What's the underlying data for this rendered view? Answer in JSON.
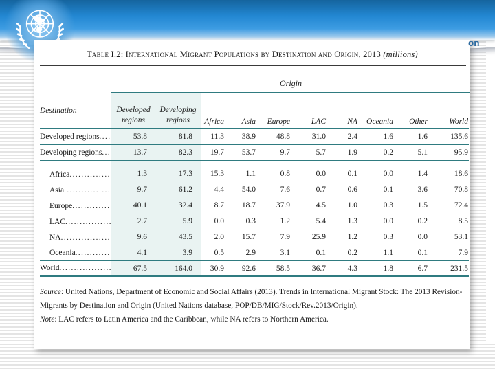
{
  "header": {
    "fragment": "on",
    "logo": "united-nations-emblem",
    "colors": {
      "band_top": "#15649e",
      "band_mid": "#2e94de",
      "fragment_blue": "#2c6aa0"
    }
  },
  "panel": {
    "title": "Table I.2: International Migrant Populations by Destination and Origin, 2013",
    "title_unit": "(millions)",
    "origin_label": "Origin",
    "columns": [
      "Destination",
      "Developed regions",
      "Developing regions",
      "Africa",
      "Asia",
      "Europe",
      "LAC",
      "NA",
      "Oceania",
      "Other",
      "World"
    ],
    "rows": [
      {
        "label": "Developed regions",
        "indent": false,
        "sep": "thin",
        "values": [
          "53.8",
          "81.8",
          "11.3",
          "38.9",
          "48.8",
          "31.0",
          "2.4",
          "1.6",
          "1.6",
          "135.6"
        ]
      },
      {
        "label": "Developing regions",
        "indent": false,
        "sep": "thin",
        "gap_after": true,
        "values": [
          "13.7",
          "82.3",
          "19.7",
          "53.7",
          "9.7",
          "5.7",
          "1.9",
          "0.2",
          "5.1",
          "95.9"
        ]
      },
      {
        "label": "Africa",
        "indent": true,
        "values": [
          "1.3",
          "17.3",
          "15.3",
          "1.1",
          "0.8",
          "0.0",
          "0.1",
          "0.0",
          "1.4",
          "18.6"
        ]
      },
      {
        "label": "Asia",
        "indent": true,
        "values": [
          "9.7",
          "61.2",
          "4.4",
          "54.0",
          "7.6",
          "0.7",
          "0.6",
          "0.1",
          "3.6",
          "70.8"
        ]
      },
      {
        "label": "Europe",
        "indent": true,
        "values": [
          "40.1",
          "32.4",
          "8.7",
          "18.7",
          "37.9",
          "4.5",
          "1.0",
          "0.3",
          "1.5",
          "72.4"
        ]
      },
      {
        "label": "LAC",
        "indent": true,
        "values": [
          "2.7",
          "5.9",
          "0.0",
          "0.3",
          "1.2",
          "5.4",
          "1.3",
          "0.0",
          "0.2",
          "8.5"
        ]
      },
      {
        "label": "NA",
        "indent": true,
        "values": [
          "9.6",
          "43.5",
          "2.0",
          "15.7",
          "7.9",
          "25.9",
          "1.2",
          "0.3",
          "0.0",
          "53.1"
        ]
      },
      {
        "label": "Oceania",
        "indent": true,
        "sep": "hair",
        "values": [
          "4.1",
          "3.9",
          "0.5",
          "2.9",
          "3.1",
          "0.1",
          "0.2",
          "1.1",
          "0.1",
          "7.9"
        ]
      },
      {
        "label": "World",
        "indent": false,
        "sep": "thick",
        "values": [
          "67.5",
          "164.0",
          "30.9",
          "92.6",
          "58.5",
          "36.7",
          "4.3",
          "1.8",
          "6.7",
          "231.5"
        ]
      }
    ],
    "source_prefix": "Source",
    "source_line1": ": United Nations, Department of Economic and Social Affairs (2013). Trends in International Migrant Stock: The 2013 Revision-",
    "source_line2": "Migrants by Destination and Origin (United Nations database, POP/DB/MIG/Stock/Rev.2013/Origin).",
    "note_prefix": "Note",
    "note_text": ": LAC refers to Latin America and the Caribbean, while NA refers to Northern America.",
    "colors": {
      "teal_rule": "#2f7b80",
      "column_shade": "#e9f3f2"
    }
  }
}
